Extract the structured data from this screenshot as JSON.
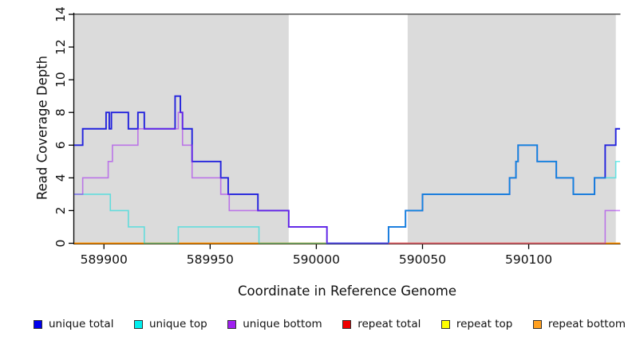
{
  "chart_data": {
    "type": "line",
    "subtype": "step-after",
    "title": "",
    "xlabel": "Coordinate in Reference Genome",
    "ylabel": "Read Coverage Depth",
    "xlim": [
      589886,
      590143
    ],
    "ylim": [
      0,
      14
    ],
    "x_ticks": [
      589900,
      589950,
      590000,
      590050,
      590100
    ],
    "y_ticks": [
      0,
      2,
      4,
      6,
      8,
      10,
      12,
      14
    ],
    "grid": false,
    "legend_position": "bottom",
    "background_color": "#ffffff",
    "shaded_region_color": "#DBDBDB",
    "shaded_regions": [
      [
        589886,
        589987
      ],
      [
        590043,
        590141
      ]
    ],
    "series": [
      {
        "name": "unique total",
        "legend_color": "#0000EE",
        "line_color": "#2222DD",
        "alpha": 1,
        "points": [
          [
            589886,
            6
          ],
          [
            589890,
            7
          ],
          [
            589901,
            8
          ],
          [
            589902.5,
            7
          ],
          [
            589903.5,
            8
          ],
          [
            589911.5,
            7
          ],
          [
            589916,
            8
          ],
          [
            589919,
            7
          ],
          [
            589933.5,
            9
          ],
          [
            589936,
            8
          ],
          [
            589937,
            7
          ],
          [
            589941.5,
            5
          ],
          [
            589955,
            4
          ],
          [
            589958.5,
            3
          ],
          [
            589972.5,
            2
          ],
          [
            589987,
            1
          ],
          [
            590005,
            0
          ],
          [
            590034,
            1
          ],
          [
            590042,
            2
          ],
          [
            590050,
            3
          ],
          [
            590091,
            4
          ],
          [
            590094,
            5
          ],
          [
            590095,
            6
          ],
          [
            590104,
            5
          ],
          [
            590113,
            4
          ],
          [
            590121,
            3
          ],
          [
            590131,
            4
          ],
          [
            590136,
            6
          ],
          [
            590141,
            7
          ]
        ]
      },
      {
        "name": "unique top",
        "legend_color": "#00EEEE",
        "line_color": "#00DDDD",
        "alpha": 0.55,
        "points": [
          [
            589886,
            3
          ],
          [
            589903,
            2
          ],
          [
            589911.5,
            1
          ],
          [
            589919,
            0
          ],
          [
            589935,
            1
          ],
          [
            589973,
            0
          ],
          [
            590034,
            1
          ],
          [
            590042,
            2
          ],
          [
            590050,
            3
          ],
          [
            590091,
            4
          ],
          [
            590094,
            5
          ],
          [
            590095,
            6
          ],
          [
            590104,
            5
          ],
          [
            590113,
            4
          ],
          [
            590121,
            3
          ],
          [
            590131,
            4
          ],
          [
            590141,
            5
          ]
        ]
      },
      {
        "name": "unique bottom",
        "legend_color": "#A020F0",
        "line_color": "#A020F0",
        "alpha": 0.55,
        "points": [
          [
            589886,
            3
          ],
          [
            589890,
            4
          ],
          [
            589902,
            5
          ],
          [
            589904,
            6
          ],
          [
            589916,
            7
          ],
          [
            589935,
            8
          ],
          [
            589937,
            6
          ],
          [
            589941.5,
            4
          ],
          [
            589955,
            3
          ],
          [
            589959,
            2
          ],
          [
            589987,
            1
          ],
          [
            590005,
            0
          ],
          [
            590136,
            2
          ]
        ]
      },
      {
        "name": "repeat total",
        "legend_color": "#EE0000",
        "line_color": "#CC2222",
        "alpha": 1,
        "points": [
          [
            589886,
            0
          ]
        ]
      },
      {
        "name": "repeat top",
        "legend_color": "#FFFF00",
        "line_color": "#FFEE00",
        "alpha": 1,
        "points": [
          [
            589886,
            0
          ]
        ]
      },
      {
        "name": "repeat bottom",
        "legend_color": "#FFA020",
        "line_color": "#FF8C00",
        "alpha": 1,
        "points": [
          [
            589886,
            0
          ]
        ]
      }
    ],
    "overlay_segments": [
      {
        "series": "repeat total",
        "x_from": 590034,
        "x_to": 590136,
        "y": 0,
        "color": "#E06272"
      }
    ],
    "axis_color": "#000000",
    "top_border_color": "#555555"
  }
}
